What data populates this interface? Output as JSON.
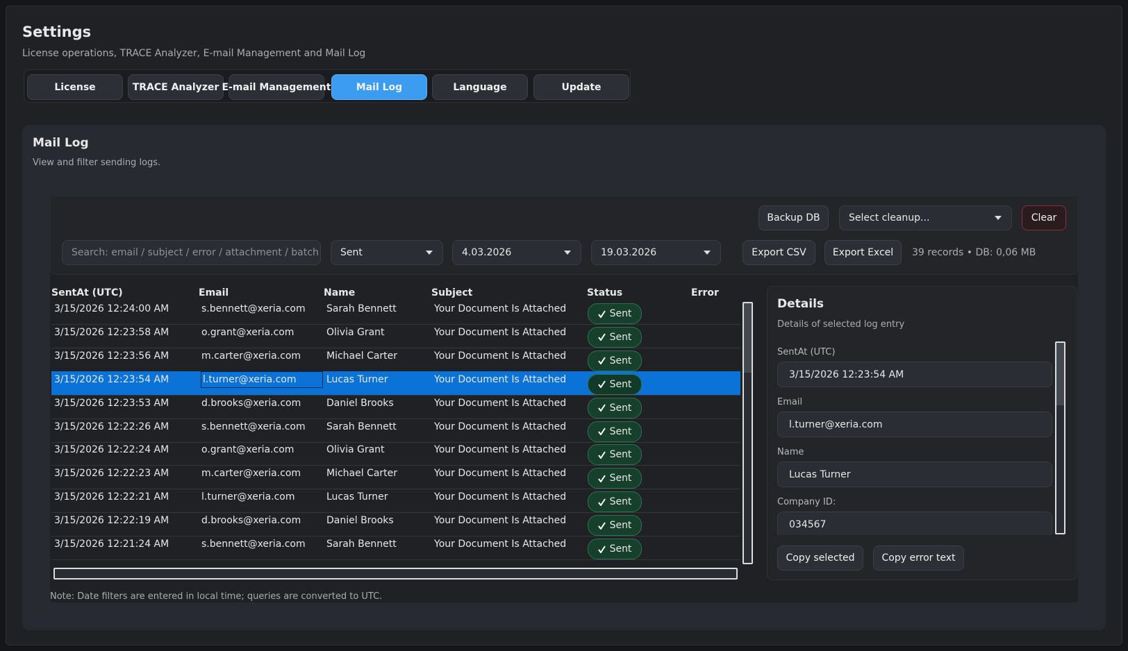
{
  "header": {
    "title": "Settings",
    "subtitle": "License operations, TRACE Analyzer, E-mail Management and Mail Log"
  },
  "tabs": {
    "items": [
      "License",
      "TRACE Analyzer",
      "E-mail Management",
      "Mail Log",
      "Language",
      "Update"
    ],
    "active": 3
  },
  "panel": {
    "title": "Mail Log",
    "subtitle": "View and filter sending logs."
  },
  "toolbar": {
    "backup": "Backup DB",
    "cleanup": "Select cleanup...",
    "clear": "Clear",
    "search_placeholder": "Search: email / subject / error / attachment / batch",
    "status": "Sent",
    "date_from": "4.03.2026",
    "date_to": "19.03.2026",
    "export_csv": "Export CSV",
    "export_excel": "Export Excel",
    "summary": "39 records • DB: 0,06 MB"
  },
  "table": {
    "columns": [
      "SentAt (UTC)",
      "Email",
      "Name",
      "Subject",
      "Status",
      "Error"
    ],
    "selected": 3,
    "rows": [
      [
        "3/15/2026 12:24:00 AM",
        "s.bennett@xeria.com",
        "Sarah Bennett",
        "Your Document Is Attached",
        "Sent"
      ],
      [
        "3/15/2026 12:23:58 AM",
        "o.grant@xeria.com",
        "Olivia Grant",
        "Your Document Is Attached",
        "Sent"
      ],
      [
        "3/15/2026 12:23:56 AM",
        "m.carter@xeria.com",
        "Michael Carter",
        "Your Document Is Attached",
        "Sent"
      ],
      [
        "3/15/2026 12:23:54 AM",
        "l.turner@xeria.com",
        "Lucas Turner",
        "Your Document Is Attached",
        "Sent"
      ],
      [
        "3/15/2026 12:23:53 AM",
        "d.brooks@xeria.com",
        "Daniel Brooks",
        "Your Document Is Attached",
        "Sent"
      ],
      [
        "3/15/2026 12:22:26 AM",
        "s.bennett@xeria.com",
        "Sarah Bennett",
        "Your Document Is Attached",
        "Sent"
      ],
      [
        "3/15/2026 12:22:24 AM",
        "o.grant@xeria.com",
        "Olivia Grant",
        "Your Document Is Attached",
        "Sent"
      ],
      [
        "3/15/2026 12:22:23 AM",
        "m.carter@xeria.com",
        "Michael Carter",
        "Your Document Is Attached",
        "Sent"
      ],
      [
        "3/15/2026 12:22:21 AM",
        "l.turner@xeria.com",
        "Lucas Turner",
        "Your Document Is Attached",
        "Sent"
      ],
      [
        "3/15/2026 12:22:19 AM",
        "d.brooks@xeria.com",
        "Daniel Brooks",
        "Your Document Is Attached",
        "Sent"
      ],
      [
        "3/15/2026 12:21:24 AM",
        "s.bennett@xeria.com",
        "Sarah Bennett",
        "Your Document Is Attached",
        "Sent"
      ]
    ]
  },
  "details": {
    "title": "Details",
    "subtitle": "Details of selected log entry",
    "fields": [
      {
        "label": "SentAt (UTC)",
        "value": "3/15/2026 12:23:54 AM"
      },
      {
        "label": "Email",
        "value": "l.turner@xeria.com"
      },
      {
        "label": "Name",
        "value": "Lucas Turner"
      },
      {
        "label": "Company ID:",
        "value": "034567"
      }
    ],
    "copy_selected": "Copy selected",
    "copy_error": "Copy error text"
  },
  "note": "Note: Date filters are entered in local time; queries are converted to UTC."
}
